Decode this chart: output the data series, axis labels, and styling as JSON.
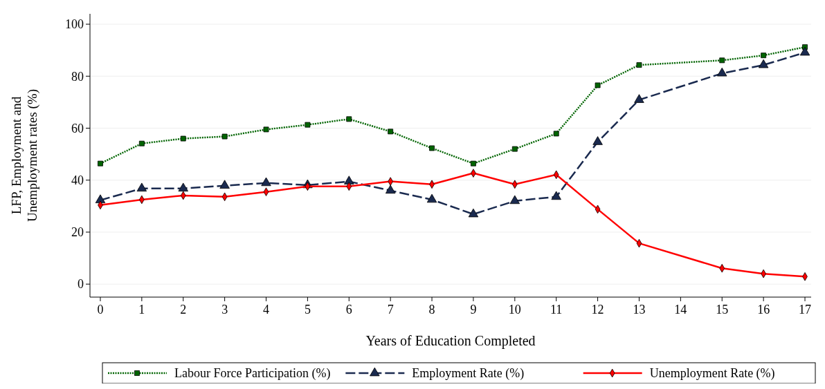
{
  "chart_data": {
    "type": "line",
    "xlabel": "Years of Education Completed",
    "ylabel": "LFP, Employment and Unemployment rates (%)",
    "x": [
      0,
      1,
      2,
      3,
      4,
      5,
      6,
      7,
      8,
      9,
      10,
      11,
      12,
      13,
      15,
      16,
      17
    ],
    "xlim": [
      -0.25,
      17.15
    ],
    "xticks": [
      0,
      1,
      2,
      3,
      4,
      5,
      6,
      7,
      8,
      9,
      10,
      11,
      12,
      13,
      14,
      15,
      16,
      17
    ],
    "ylim": [
      -5,
      104
    ],
    "yticks": [
      0,
      20,
      40,
      60,
      80,
      100
    ],
    "grid": "y",
    "legend": "bottom",
    "series": [
      {
        "name": "Labour Force Participation (%)",
        "color": "#006400",
        "marker": "square",
        "line_style": "dotted",
        "values": [
          46.4,
          54.1,
          56,
          56.8,
          59.5,
          61.3,
          63.5,
          58.7,
          52.3,
          46.4,
          52,
          57.9,
          76.5,
          84.3,
          86.1,
          88,
          91.2
        ]
      },
      {
        "name": "Employment Rate (%)",
        "color": "#1a2a4f",
        "marker": "triangle",
        "line_style": "dashed",
        "values": [
          32.3,
          36.8,
          36.8,
          37.9,
          38.9,
          38.1,
          39.5,
          36,
          32.5,
          26.9,
          32,
          33.6,
          54.7,
          70.9,
          81.1,
          84.3,
          89.1
        ]
      },
      {
        "name": "Unemployment Rate (%)",
        "color": "#ff0000",
        "marker": "diamond",
        "line_style": "solid",
        "values": [
          30.4,
          32.5,
          34.1,
          33.6,
          35.5,
          37.6,
          37.6,
          39.5,
          38.4,
          42.7,
          38.4,
          42.1,
          28.8,
          15.7,
          6.1,
          4,
          2.9
        ]
      }
    ]
  }
}
